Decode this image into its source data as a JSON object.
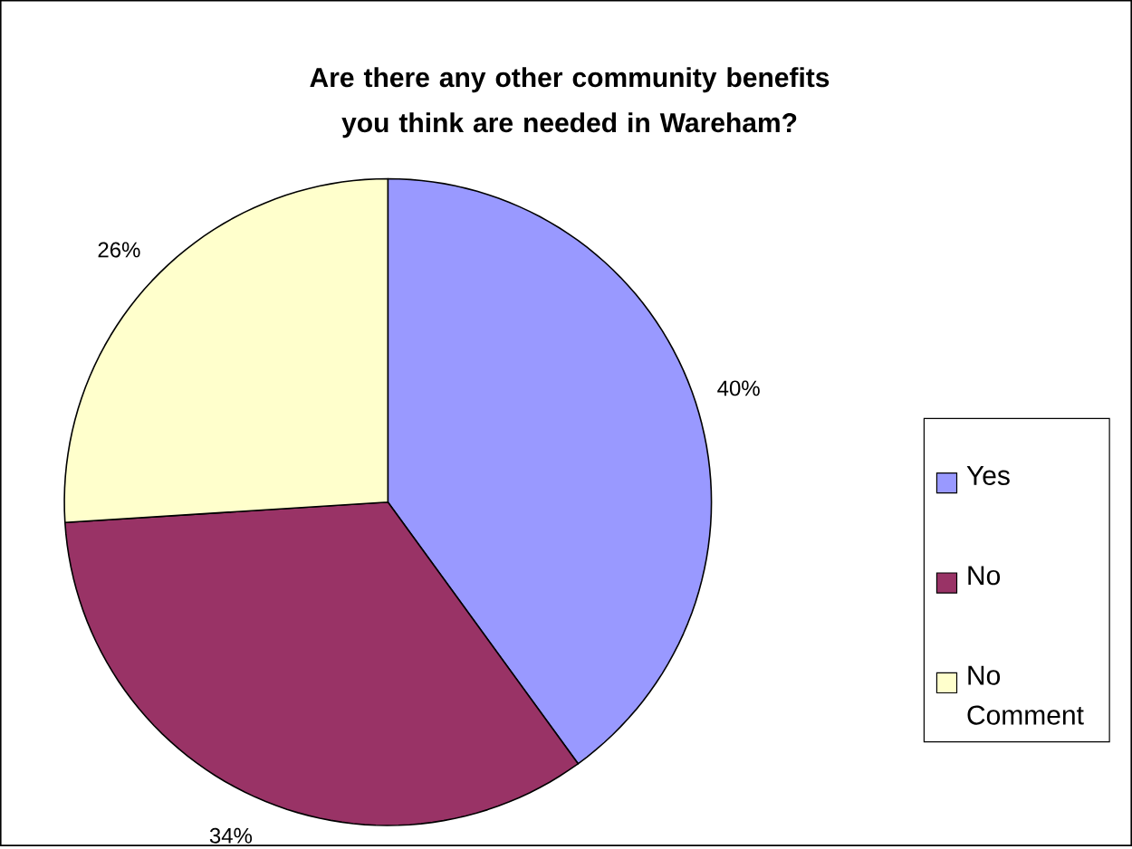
{
  "chart_data": {
    "type": "pie",
    "title": "Are there any other community benefits you think are needed in Wareham?",
    "categories": [
      "Yes",
      "No",
      "No Comment"
    ],
    "values": [
      40,
      34,
      26
    ],
    "colors": [
      "#9999ff",
      "#993366",
      "#ffffcc"
    ],
    "value_labels": [
      "40%",
      "34%",
      "26%"
    ],
    "legend": "right"
  }
}
